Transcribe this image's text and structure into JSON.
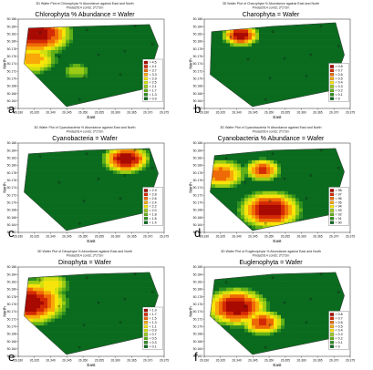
{
  "chart_data": [
    {
      "id": "a",
      "type": "heatmap",
      "title_small": "3D Wafer Plot of Chlorophyta % Abundance against East and North",
      "subtitle_small": "Pinda2014 cont3; 3*1*2m",
      "title": "Chlorophyta % Abundance = Wafer",
      "xlabel": "East",
      "ylabel": "North",
      "xticks": [
        "26.330",
        "26.335",
        "26.340",
        "26.345",
        "26.350",
        "26.355",
        "26.360",
        "26.365",
        "26.370",
        "26.375"
      ],
      "yticks": [
        "50.186",
        "50.184",
        "50.182",
        "50.180",
        "50.178",
        "50.176",
        "50.174",
        "50.172",
        "50.170",
        "50.168",
        "50.166",
        "50.164",
        "50.162"
      ],
      "legend": [
        "> 4.5",
        "< 4.1",
        "< 3.7",
        "< 3.3",
        "< 2.9",
        "< 2.5",
        "< 2.1",
        "< 1.7",
        "< 1.3",
        "< 0.9"
      ],
      "hull": [
        [
          0.07,
          0.1
        ],
        [
          0.47,
          0.08
        ],
        [
          0.9,
          0.06
        ],
        [
          0.96,
          0.3
        ],
        [
          0.87,
          0.78
        ],
        [
          0.33,
          0.98
        ],
        [
          0.04,
          0.5
        ]
      ],
      "points": [
        [
          0.15,
          0.15
        ],
        [
          0.47,
          0.12
        ],
        [
          0.8,
          0.08
        ],
        [
          0.28,
          0.42
        ],
        [
          0.55,
          0.4
        ],
        [
          0.73,
          0.36
        ],
        [
          0.92,
          0.28
        ],
        [
          0.45,
          0.65
        ],
        [
          0.7,
          0.62
        ],
        [
          0.42,
          0.9
        ]
      ],
      "hot": [
        {
          "c": [
            0.12,
            0.16
          ],
          "r": 0.28,
          "v": 1.0
        },
        {
          "c": [
            0.1,
            0.45
          ],
          "r": 0.18,
          "v": 0.7
        },
        {
          "c": [
            0.4,
            0.58
          ],
          "r": 0.1,
          "v": 0.4
        }
      ]
    },
    {
      "id": "b",
      "type": "heatmap",
      "title_small": "3D Wafer Plot of Charophyta % Abundance against East and North",
      "subtitle_small": "Pinda2014 cont3; 3*1*2m",
      "title": "Charophyta = Wafer",
      "xlabel": "East",
      "ylabel": "North",
      "xticks": [
        "26.330",
        "26.335",
        "26.340",
        "26.345",
        "26.350",
        "26.355",
        "26.360",
        "26.365",
        "26.370",
        "26.375"
      ],
      "yticks": [
        "50.186",
        "50.184",
        "50.182",
        "50.180",
        "50.178",
        "50.176",
        "50.174",
        "50.172",
        "50.170",
        "50.168",
        "50.166",
        "50.164",
        "50.162"
      ],
      "legend": [
        "> 0.8",
        "< 0.7",
        "< 0.6",
        "< 0.5",
        "< 0.4",
        "< 0.3",
        "< 0.2",
        "< 0.1",
        "< 0"
      ],
      "hull": [
        [
          0.05,
          0.14
        ],
        [
          0.47,
          0.08
        ],
        [
          0.9,
          0.04
        ],
        [
          0.96,
          0.4
        ],
        [
          0.87,
          0.8
        ],
        [
          0.33,
          0.98
        ],
        [
          0.04,
          0.62
        ]
      ],
      "points": [
        [
          0.18,
          0.2
        ],
        [
          0.47,
          0.14
        ],
        [
          0.8,
          0.08
        ],
        [
          0.3,
          0.45
        ],
        [
          0.55,
          0.44
        ],
        [
          0.73,
          0.4
        ],
        [
          0.92,
          0.3
        ],
        [
          0.45,
          0.66
        ],
        [
          0.7,
          0.64
        ],
        [
          0.42,
          0.9
        ]
      ],
      "hot": [
        {
          "c": [
            0.25,
            0.18
          ],
          "r": 0.14,
          "v": 1.0
        }
      ]
    },
    {
      "id": "c",
      "type": "heatmap",
      "title_small": "3D Wafer Plot of Cyanobacteria % Abundance against East and North",
      "subtitle_small": "Pinda2014 cont3; 3*1*2m",
      "title": "Cyanobacteria = Wafer",
      "xlabel": "East",
      "ylabel": "North",
      "xticks": [
        "26.330",
        "26.335",
        "26.340",
        "26.345",
        "26.350",
        "26.355",
        "26.360",
        "26.365",
        "26.370",
        "26.375"
      ],
      "yticks": [
        "50.186",
        "50.184",
        "50.182",
        "50.180",
        "50.178",
        "50.176",
        "50.174",
        "50.172",
        "50.170",
        "50.168",
        "50.166",
        "50.164",
        "50.162"
      ],
      "legend": [
        "> 2.9",
        "< 2.8",
        "< 2.6",
        "< 2.4",
        "< 2.2",
        "< 2.0",
        "< 1.8",
        "< 1.6",
        "< 1.4"
      ],
      "hull": [
        [
          0.07,
          0.12
        ],
        [
          0.47,
          0.08
        ],
        [
          0.9,
          0.06
        ],
        [
          0.96,
          0.34
        ],
        [
          0.87,
          0.78
        ],
        [
          0.33,
          0.98
        ],
        [
          0.04,
          0.55
        ]
      ],
      "points": [
        [
          0.15,
          0.15
        ],
        [
          0.47,
          0.12
        ],
        [
          0.8,
          0.08
        ],
        [
          0.28,
          0.44
        ],
        [
          0.55,
          0.4
        ],
        [
          0.73,
          0.36
        ],
        [
          0.92,
          0.28
        ],
        [
          0.45,
          0.65
        ],
        [
          0.7,
          0.62
        ],
        [
          0.42,
          0.9
        ]
      ],
      "hot": [
        {
          "c": [
            0.74,
            0.18
          ],
          "r": 0.18,
          "v": 1.0
        }
      ]
    },
    {
      "id": "d",
      "type": "heatmap",
      "title_small": "3D Wafer Plot of Cyanobacteria % Abundance against East and North",
      "subtitle_small": "Pinda2014 cont3; 3*1*2m",
      "title": "Cyanobacteria % Abundance = Wafer",
      "xlabel": "East",
      "ylabel": "North",
      "xticks": [
        "26.330",
        "26.335",
        "26.340",
        "26.345",
        "26.350",
        "26.355",
        "26.360",
        "26.365",
        "26.370",
        "26.375"
      ],
      "yticks": [
        "50.186",
        "50.184",
        "50.182",
        "50.180",
        "50.178",
        "50.176",
        "50.174",
        "50.172",
        "50.170",
        "50.168",
        "50.166",
        "50.164",
        "50.162"
      ],
      "legend": [
        "> 98",
        "< 97",
        "< 96",
        "< 95",
        "< 94",
        "< 93",
        "< 92",
        "< 91",
        "< 90"
      ],
      "hull": [
        [
          0.07,
          0.14
        ],
        [
          0.47,
          0.08
        ],
        [
          0.9,
          0.06
        ],
        [
          0.96,
          0.32
        ],
        [
          0.87,
          0.8
        ],
        [
          0.33,
          0.98
        ],
        [
          0.04,
          0.55
        ]
      ],
      "points": [
        [
          0.15,
          0.17
        ],
        [
          0.47,
          0.12
        ],
        [
          0.8,
          0.08
        ],
        [
          0.28,
          0.44
        ],
        [
          0.55,
          0.4
        ],
        [
          0.73,
          0.36
        ],
        [
          0.92,
          0.28
        ],
        [
          0.45,
          0.65
        ],
        [
          0.7,
          0.62
        ],
        [
          0.42,
          0.9
        ]
      ],
      "hot": [
        {
          "c": [
            0.45,
            0.75
          ],
          "r": 0.24,
          "v": 1.0
        },
        {
          "c": [
            0.4,
            0.3
          ],
          "r": 0.14,
          "v": 0.85
        },
        {
          "c": [
            0.12,
            0.35
          ],
          "r": 0.18,
          "v": 0.8
        }
      ]
    },
    {
      "id": "e",
      "type": "heatmap",
      "title_small": "3D Wafer Plot of Dinophyta % Abundance against East and North",
      "subtitle_small": "Pinda2014 cont3; 3*1*2m",
      "title": "Dinophyta = Wafer",
      "xlabel": "East",
      "ylabel": "North",
      "xticks": [
        "26.330",
        "26.335",
        "26.340",
        "26.345",
        "26.350",
        "26.355",
        "26.360",
        "26.365",
        "26.370",
        "26.375"
      ],
      "yticks": [
        "50.186",
        "50.184",
        "50.182",
        "50.180",
        "50.178",
        "50.176",
        "50.174",
        "50.172",
        "50.170",
        "50.168",
        "50.166",
        "50.164",
        "50.162"
      ],
      "legend": [
        "> 1.9",
        "< 1.7",
        "< 1.5",
        "< 1.3",
        "< 1.1",
        "< 0.9",
        "< 0.7",
        "< 0.5",
        "< 0.3",
        "< 0.1"
      ],
      "hull": [
        [
          0.07,
          0.12
        ],
        [
          0.47,
          0.08
        ],
        [
          0.9,
          0.06
        ],
        [
          0.96,
          0.32
        ],
        [
          0.87,
          0.78
        ],
        [
          0.33,
          0.98
        ],
        [
          0.04,
          0.55
        ]
      ],
      "points": [
        [
          0.15,
          0.15
        ],
        [
          0.47,
          0.12
        ],
        [
          0.8,
          0.08
        ],
        [
          0.28,
          0.44
        ],
        [
          0.55,
          0.4
        ],
        [
          0.73,
          0.36
        ],
        [
          0.92,
          0.28
        ],
        [
          0.45,
          0.65
        ],
        [
          0.7,
          0.62
        ],
        [
          0.42,
          0.9
        ]
      ],
      "hot": [
        {
          "c": [
            0.08,
            0.4
          ],
          "r": 0.28,
          "v": 1.0
        },
        {
          "c": [
            0.22,
            0.2
          ],
          "r": 0.14,
          "v": 0.6
        }
      ]
    },
    {
      "id": "f",
      "type": "heatmap",
      "title_small": "3D Wafer Plot of Euglenophyta % Abundance against East and North",
      "subtitle_small": "Pinda2014 cont3; 3*1*2m",
      "title": "Euglenophyta = Wafer",
      "xlabel": "East",
      "ylabel": "North",
      "xticks": [
        "26.330",
        "26.335",
        "26.340",
        "26.345",
        "26.350",
        "26.355",
        "26.360",
        "26.365",
        "26.370",
        "26.375"
      ],
      "yticks": [
        "50.186",
        "50.184",
        "50.182",
        "50.180",
        "50.178",
        "50.176",
        "50.174",
        "50.172",
        "50.170",
        "50.168",
        "50.166",
        "50.164",
        "50.162"
      ],
      "legend": [
        "> 0.8",
        "< 0.7",
        "< 0.6",
        "< 0.5",
        "< 0.4",
        "< 0.3",
        "< 0.2",
        "< 0.1",
        "< 0"
      ],
      "hull": [
        [
          0.07,
          0.14
        ],
        [
          0.47,
          0.08
        ],
        [
          0.9,
          0.06
        ],
        [
          0.96,
          0.32
        ],
        [
          0.87,
          0.8
        ],
        [
          0.33,
          0.98
        ],
        [
          0.04,
          0.55
        ]
      ],
      "points": [
        [
          0.15,
          0.17
        ],
        [
          0.47,
          0.12
        ],
        [
          0.8,
          0.08
        ],
        [
          0.28,
          0.44
        ],
        [
          0.55,
          0.4
        ],
        [
          0.73,
          0.36
        ],
        [
          0.92,
          0.28
        ],
        [
          0.45,
          0.65
        ],
        [
          0.7,
          0.62
        ],
        [
          0.42,
          0.9
        ]
      ],
      "hot": [
        {
          "c": [
            0.22,
            0.45
          ],
          "r": 0.24,
          "v": 1.0
        },
        {
          "c": [
            0.4,
            0.62
          ],
          "r": 0.16,
          "v": 0.85
        }
      ]
    }
  ],
  "colors": [
    "#0a6b1e",
    "#2f8f1e",
    "#62b018",
    "#9bcb14",
    "#d2e010",
    "#f7e40a",
    "#f8a808",
    "#ee6a06",
    "#d42a04",
    "#a80a02"
  ]
}
